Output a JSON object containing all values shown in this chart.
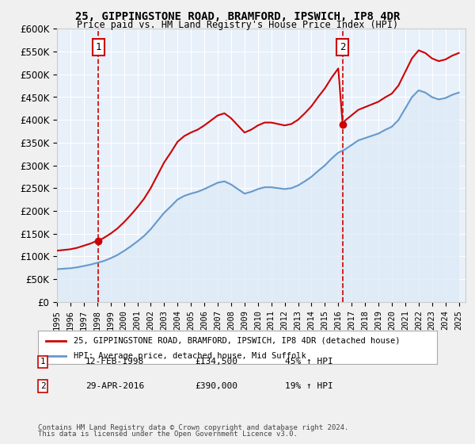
{
  "title": "25, GIPPINGSTONE ROAD, BRAMFORD, IPSWICH, IP8 4DR",
  "subtitle": "Price paid vs. HM Land Registry's House Price Index (HPI)",
  "legend_line1": "25, GIPPINGSTONE ROAD, BRAMFORD, IPSWICH, IP8 4DR (detached house)",
  "legend_line2": "HPI: Average price, detached house, Mid Suffolk",
  "footnote1": "Contains HM Land Registry data © Crown copyright and database right 2024.",
  "footnote2": "This data is licensed under the Open Government Licence v3.0.",
  "annotation1_label": "1",
  "annotation1_date": "12-FEB-1998",
  "annotation1_price": "£134,500",
  "annotation1_hpi": "45% ↑ HPI",
  "annotation2_label": "2",
  "annotation2_date": "29-APR-2016",
  "annotation2_price": "£390,000",
  "annotation2_hpi": "19% ↑ HPI",
  "purchase1_year": 1998.1,
  "purchase1_value": 134500,
  "purchase2_year": 2016.33,
  "purchase2_value": 390000,
  "ylim": [
    0,
    600000
  ],
  "xlim_start": 1995,
  "xlim_end": 2025.5,
  "bg_color": "#dce9f5",
  "plot_bg": "#e8f0fa",
  "red_color": "#cc0000",
  "blue_color": "#6699cc",
  "grid_color": "#ffffff",
  "dashed_color": "#cc0000"
}
